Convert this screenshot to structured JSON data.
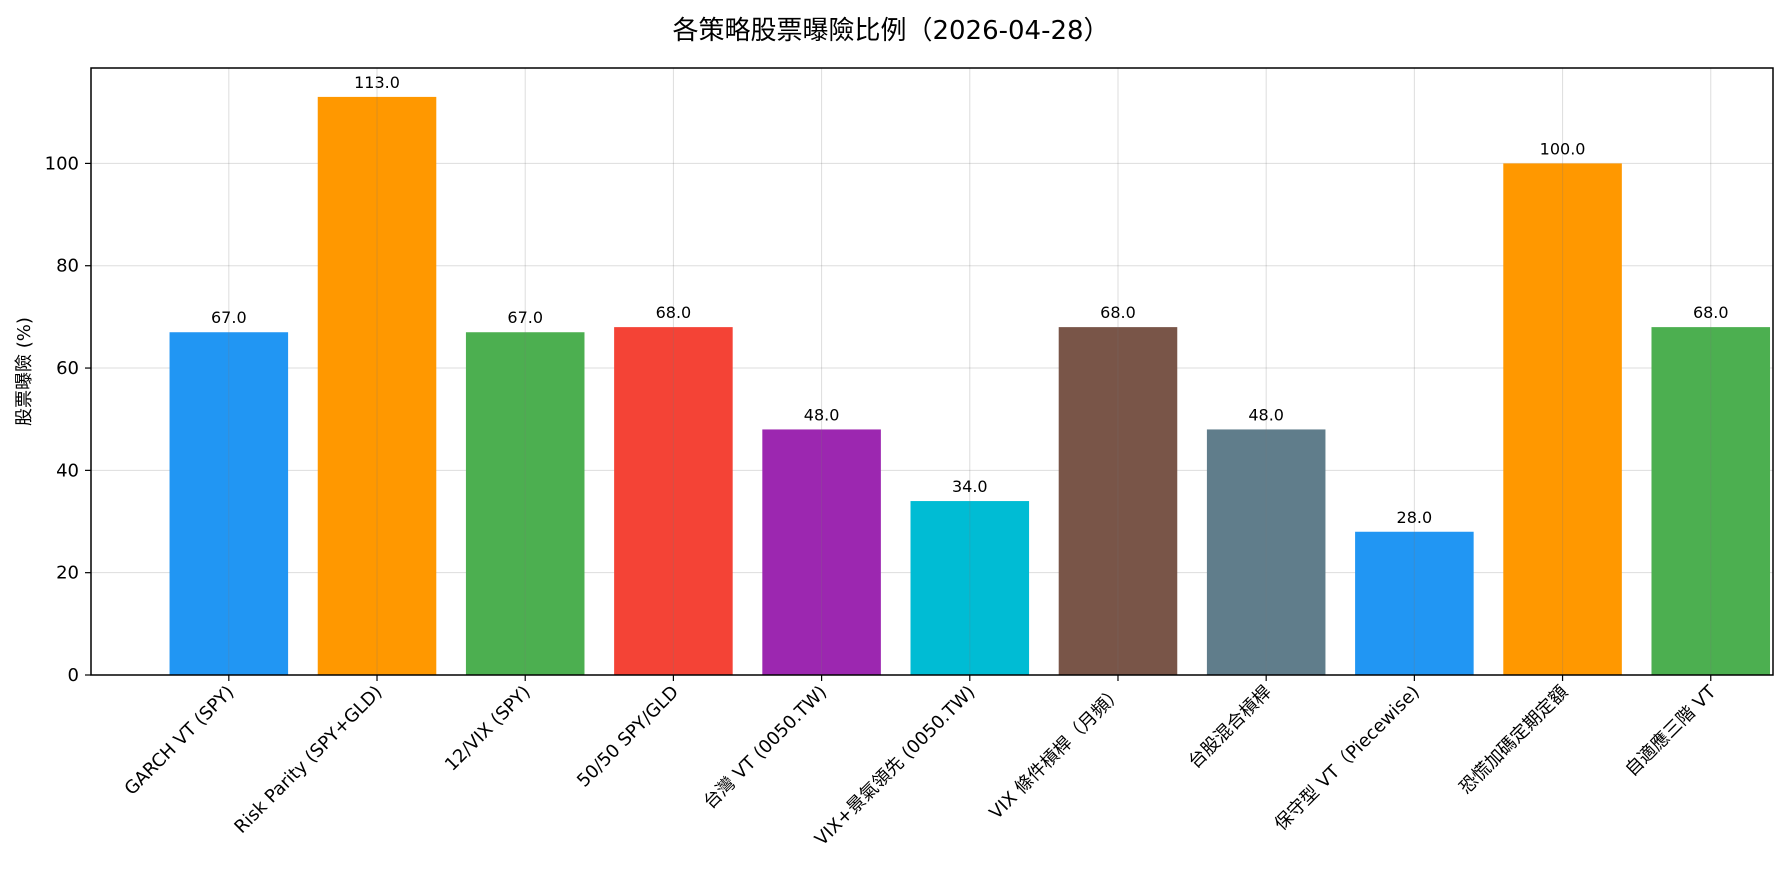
{
  "chart_data": {
    "type": "bar",
    "title": "各策略股票曝險比例（2026-04-28）",
    "xlabel": "",
    "ylabel": "股票曝險 (%)",
    "ylim": [
      0,
      118.65
    ],
    "yticks": [
      0,
      20,
      40,
      60,
      80,
      100
    ],
    "grid": true,
    "categories": [
      "GARCH VT (SPY)",
      "Risk Parity (SPY+GLD)",
      "12/VIX (SPY)",
      "50/50 SPY/GLD",
      "台灣 VT (0050.TW)",
      "VIX+景氣領先 (0050.TW)",
      "VIX 條件槓桿（月頻）",
      "台股混合槓桿",
      "保守型 VT（Piecewise)",
      "恐慌加碼定期定額",
      "自適應三階 VT"
    ],
    "values": [
      67.0,
      113.0,
      67.0,
      68.0,
      48.0,
      34.0,
      68.0,
      48.0,
      28.0,
      100.0,
      68.0
    ],
    "value_labels": [
      "67.0",
      "113.0",
      "67.0",
      "68.0",
      "48.0",
      "34.0",
      "68.0",
      "48.0",
      "28.0",
      "100.0",
      "68.0"
    ],
    "colors": [
      "#2196F3",
      "#FF9800",
      "#4CAF50",
      "#F44336",
      "#9C27B0",
      "#00BCD4",
      "#795548",
      "#607D8B",
      "#2196F3",
      "#FF9800",
      "#4CAF50"
    ]
  }
}
